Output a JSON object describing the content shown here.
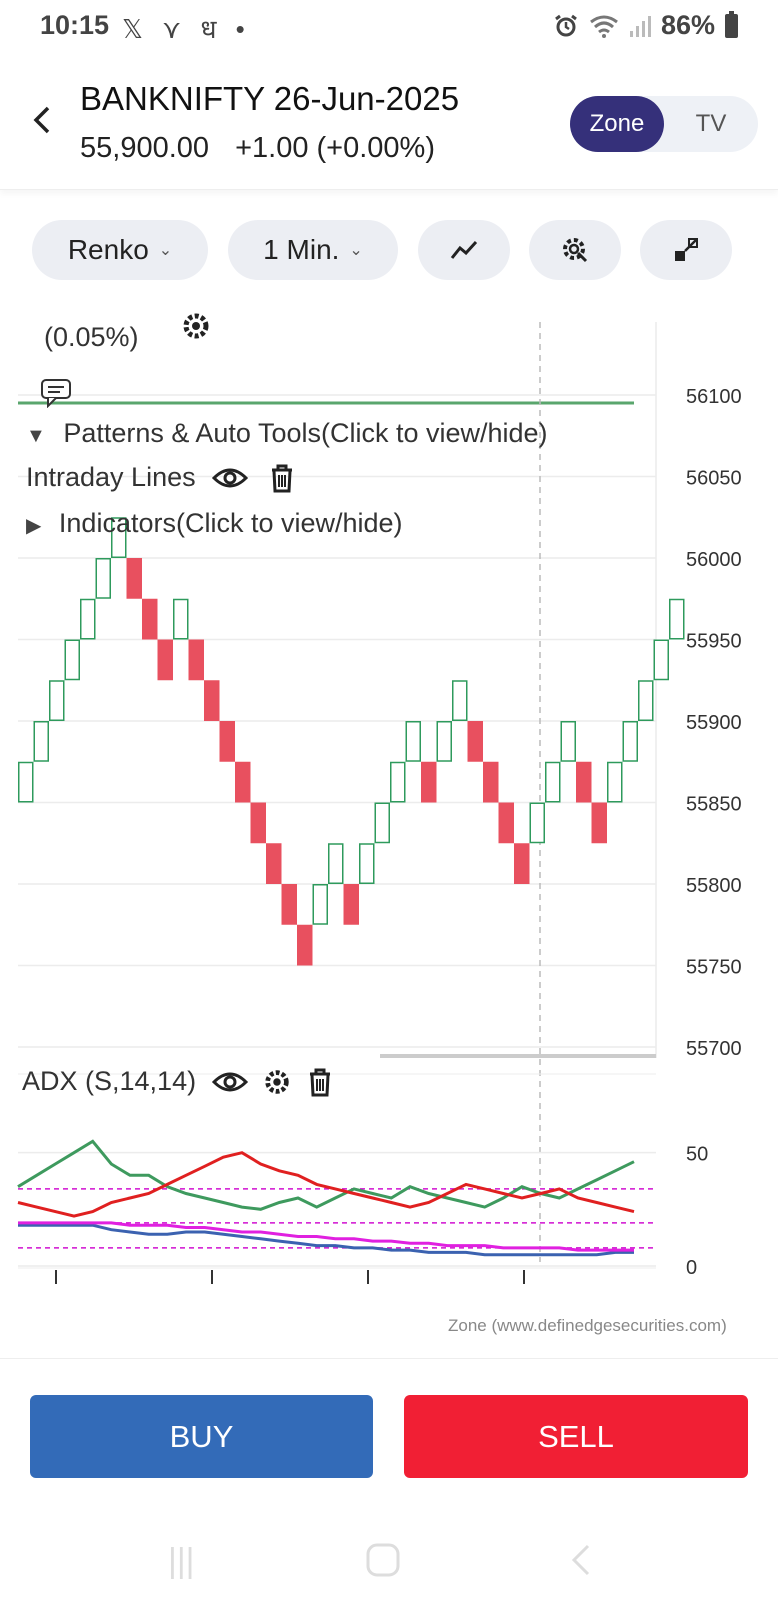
{
  "status": {
    "time": "10:15",
    "left_icons": "𝕏 ⋎ ध •",
    "battery": "86%"
  },
  "header": {
    "symbol": "BANKNIFTY 26-Jun-2025",
    "price": "55,900.00",
    "change": "+1.00 (+0.00%)",
    "toggle_zone": "Zone",
    "toggle_tv": "TV"
  },
  "toolbar": {
    "chart_type": "Renko",
    "interval": "1 Min.",
    "indicator_icon": "line-chart-icon",
    "settings_icon": "gear-search-icon",
    "fullscreen_icon": "expand-icon"
  },
  "overlay": {
    "box_pct": "(0.05%)",
    "patterns": "Patterns & Auto Tools(Click to view/hide)",
    "intraday": "Intraday Lines",
    "indicators": "Indicators(Click to view/hide)"
  },
  "adx": {
    "label": "ADX (S,14,14)"
  },
  "watermark": "Zone (www.definedgesecurities.com)",
  "actions": {
    "buy": "BUY",
    "sell": "SELL"
  },
  "colors": {
    "up_brick": "#2e9a5c",
    "down_brick": "#e8505f",
    "adx_green": "#3e9a5e",
    "adx_red": "#e02020",
    "adx_blue": "#3b62b0",
    "adx_magenta": "#e020e0"
  },
  "chart_data": [
    {
      "type": "renko",
      "brick_size": 25,
      "ylim": [
        55700,
        56100
      ],
      "y_ticks": [
        56100,
        56050,
        56000,
        55950,
        55900,
        55850,
        55800,
        55750,
        55700
      ],
      "bricks": [
        {
          "low": 55850,
          "dir": "up"
        },
        {
          "low": 55875,
          "dir": "up"
        },
        {
          "low": 55900,
          "dir": "up"
        },
        {
          "low": 55925,
          "dir": "up"
        },
        {
          "low": 55950,
          "dir": "up"
        },
        {
          "low": 55975,
          "dir": "up"
        },
        {
          "low": 56000,
          "dir": "up"
        },
        {
          "low": 55975,
          "dir": "down"
        },
        {
          "low": 55950,
          "dir": "down"
        },
        {
          "low": 55925,
          "dir": "down"
        },
        {
          "low": 55950,
          "dir": "up"
        },
        {
          "low": 55925,
          "dir": "down"
        },
        {
          "low": 55900,
          "dir": "down"
        },
        {
          "low": 55875,
          "dir": "down"
        },
        {
          "low": 55850,
          "dir": "down"
        },
        {
          "low": 55825,
          "dir": "down"
        },
        {
          "low": 55800,
          "dir": "down"
        },
        {
          "low": 55775,
          "dir": "down"
        },
        {
          "low": 55750,
          "dir": "down"
        },
        {
          "low": 55775,
          "dir": "up"
        },
        {
          "low": 55800,
          "dir": "up"
        },
        {
          "low": 55775,
          "dir": "down"
        },
        {
          "low": 55800,
          "dir": "up"
        },
        {
          "low": 55825,
          "dir": "up"
        },
        {
          "low": 55850,
          "dir": "up"
        },
        {
          "low": 55875,
          "dir": "up"
        },
        {
          "low": 55850,
          "dir": "down"
        },
        {
          "low": 55875,
          "dir": "up"
        },
        {
          "low": 55900,
          "dir": "up"
        },
        {
          "low": 55875,
          "dir": "down"
        },
        {
          "low": 55850,
          "dir": "down"
        },
        {
          "low": 55825,
          "dir": "down"
        },
        {
          "low": 55800,
          "dir": "down"
        },
        {
          "low": 55825,
          "dir": "up"
        },
        {
          "low": 55850,
          "dir": "up"
        },
        {
          "low": 55875,
          "dir": "up"
        },
        {
          "low": 55850,
          "dir": "down"
        },
        {
          "low": 55825,
          "dir": "down"
        },
        {
          "low": 55850,
          "dir": "up"
        },
        {
          "low": 55875,
          "dir": "up"
        },
        {
          "low": 55900,
          "dir": "up"
        },
        {
          "low": 55925,
          "dir": "up"
        },
        {
          "low": 55950,
          "dir": "up"
        }
      ],
      "horizontal_line": 56100
    },
    {
      "type": "line",
      "title": "ADX (S,14,14)",
      "ylim": [
        0,
        60
      ],
      "y_ticks": [
        50,
        0
      ],
      "reference_lines": [
        8,
        19,
        34
      ],
      "series": [
        {
          "color": "#3e9a5e",
          "values": [
            35,
            40,
            45,
            50,
            55,
            45,
            40,
            40,
            35,
            32,
            30,
            28,
            26,
            25,
            28,
            30,
            26,
            30,
            34,
            32,
            30,
            35,
            32,
            30,
            28,
            26,
            30,
            35,
            32,
            30,
            34,
            38,
            42,
            46
          ]
        },
        {
          "color": "#e02020",
          "values": [
            28,
            26,
            24,
            22,
            24,
            28,
            30,
            32,
            36,
            40,
            44,
            48,
            50,
            45,
            42,
            40,
            36,
            34,
            32,
            30,
            28,
            26,
            28,
            32,
            36,
            34,
            32,
            30,
            32,
            34,
            30,
            28,
            26,
            24
          ]
        },
        {
          "color": "#3b62b0",
          "values": [
            18,
            18,
            18,
            18,
            18,
            16,
            15,
            14,
            14,
            15,
            15,
            14,
            13,
            12,
            11,
            10,
            9,
            9,
            8,
            8,
            7,
            7,
            6,
            6,
            6,
            5,
            5,
            5,
            5,
            5,
            5,
            5,
            6,
            6
          ]
        },
        {
          "color": "#e020e0",
          "values": [
            19,
            19,
            19,
            19,
            19,
            19,
            18,
            18,
            18,
            17,
            17,
            16,
            15,
            15,
            14,
            13,
            13,
            12,
            12,
            11,
            11,
            10,
            10,
            9,
            9,
            9,
            8,
            8,
            8,
            8,
            7,
            7,
            7,
            7
          ]
        }
      ]
    }
  ]
}
